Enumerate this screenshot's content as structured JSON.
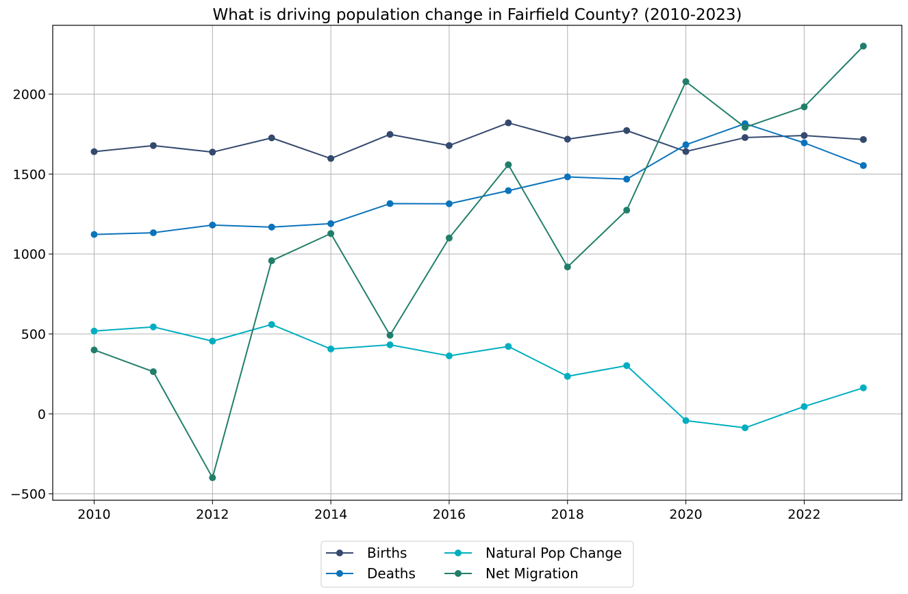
{
  "chart_data": {
    "type": "line",
    "title": "What is driving population change in Fairfield County? (2010-2023)",
    "xlabel": "",
    "ylabel": "",
    "x": [
      2010,
      2011,
      2012,
      2013,
      2014,
      2015,
      2016,
      2017,
      2018,
      2019,
      2020,
      2021,
      2022,
      2023
    ],
    "xlim": [
      2009.3,
      2023.65
    ],
    "ylim": [
      -540,
      2430
    ],
    "x_ticks": [
      2010,
      2012,
      2014,
      2016,
      2018,
      2020,
      2022
    ],
    "y_ticks": [
      -500,
      0,
      500,
      1000,
      1500,
      2000
    ],
    "x_tick_labels": [
      "2010",
      "2012",
      "2014",
      "2016",
      "2018",
      "2020",
      "2022"
    ],
    "y_tick_labels": [
      "−500",
      "0",
      "500",
      "1000",
      "1500",
      "2000"
    ],
    "grid": true,
    "legend_position": "bottom-center",
    "series": [
      {
        "name": "Births",
        "color": "#34496e",
        "values": [
          1640,
          1678,
          1637,
          1726,
          1597,
          1748,
          1678,
          1820,
          1718,
          1772,
          1641,
          1728,
          1741,
          1716
        ]
      },
      {
        "name": "Deaths",
        "color": "#0a73bc",
        "values": [
          1122,
          1133,
          1181,
          1168,
          1190,
          1315,
          1314,
          1396,
          1482,
          1468,
          1683,
          1815,
          1695,
          1553
        ]
      },
      {
        "name": "Natural Pop Change",
        "color": "#00aec0",
        "values": [
          518,
          544,
          455,
          559,
          406,
          432,
          363,
          422,
          235,
          302,
          -42,
          -87,
          46,
          163
        ]
      },
      {
        "name": "Net Migration",
        "color": "#217e6a",
        "values": [
          400,
          264,
          -399,
          958,
          1128,
          492,
          1100,
          1558,
          919,
          1274,
          2078,
          1792,
          1920,
          2300
        ]
      }
    ]
  }
}
